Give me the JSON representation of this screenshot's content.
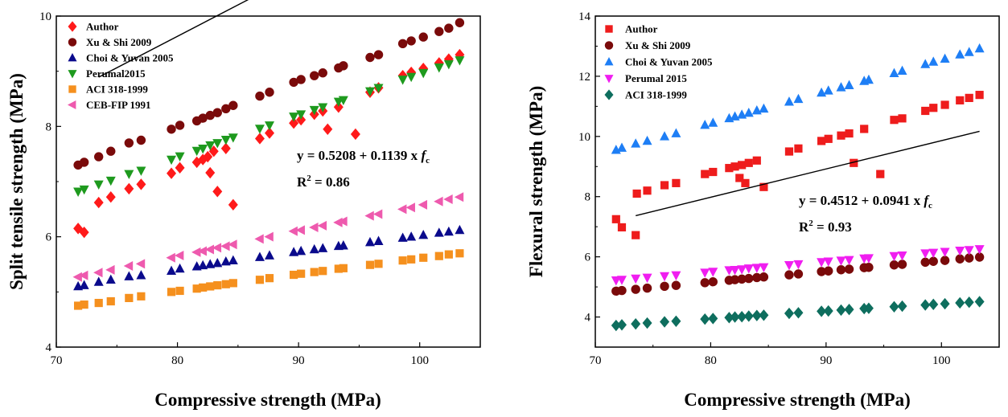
{
  "chart_data": [
    {
      "type": "scatter",
      "xlabel": "Compressive strength (MPa)",
      "ylabel": "Split tensile strength (MPa)",
      "xlim": [
        70,
        105
      ],
      "ylim": [
        4,
        10
      ],
      "xticks": [
        70,
        80,
        90,
        100
      ],
      "yticks": [
        4,
        6,
        8,
        10
      ],
      "legend": "top-left",
      "series": [
        {
          "name": "Author",
          "marker": "diamond",
          "color": "#ff1a1a",
          "x": [
            71.8,
            72.3,
            73.5,
            74.5,
            76.0,
            77.0,
            79.5,
            80.2,
            81.6,
            82.1,
            82.5,
            82.7,
            83.0,
            83.3,
            84.0,
            84.6,
            86.8,
            87.6,
            89.6,
            90.2,
            91.3,
            92.0,
            92.4,
            93.3,
            94.7,
            95.9,
            96.6,
            98.6,
            99.3,
            100.3,
            101.6,
            102.4,
            103.3
          ],
          "y": [
            6.15,
            6.08,
            6.62,
            6.72,
            6.87,
            6.95,
            7.15,
            7.25,
            7.35,
            7.4,
            7.45,
            7.16,
            7.55,
            6.82,
            7.6,
            6.58,
            7.78,
            7.88,
            8.06,
            8.12,
            8.22,
            8.28,
            7.95,
            8.35,
            7.86,
            8.62,
            8.7,
            8.92,
            8.98,
            9.05,
            9.15,
            9.22,
            9.3
          ]
        },
        {
          "name": "Xu & Shi 2009",
          "marker": "circle",
          "color": "#7a0a0a",
          "x": [
            71.8,
            72.3,
            73.5,
            74.5,
            76.0,
            77.0,
            79.5,
            80.2,
            81.6,
            82.1,
            82.7,
            83.3,
            84.0,
            84.6,
            86.8,
            87.6,
            89.6,
            90.2,
            91.3,
            92.0,
            93.3,
            93.7,
            95.9,
            96.6,
            98.6,
            99.3,
            100.3,
            101.6,
            102.4,
            103.3
          ],
          "y": [
            7.3,
            7.35,
            7.45,
            7.55,
            7.7,
            7.75,
            7.95,
            8.02,
            8.1,
            8.15,
            8.2,
            8.25,
            8.32,
            8.38,
            8.55,
            8.62,
            8.8,
            8.85,
            8.92,
            8.97,
            9.06,
            9.1,
            9.25,
            9.3,
            9.5,
            9.55,
            9.62,
            9.72,
            9.78,
            9.88
          ]
        },
        {
          "name": "Choi & Yuvan 2005",
          "marker": "triangle-up",
          "color": "#0a0a8c",
          "x": [
            71.8,
            72.3,
            73.5,
            74.5,
            76.0,
            77.0,
            79.5,
            80.2,
            81.6,
            82.1,
            82.7,
            83.3,
            84.0,
            84.6,
            86.8,
            87.6,
            89.6,
            90.2,
            91.3,
            92.0,
            93.3,
            93.7,
            95.9,
            96.6,
            98.6,
            99.3,
            100.3,
            101.6,
            102.4,
            103.3
          ],
          "y": [
            5.1,
            5.12,
            5.18,
            5.22,
            5.28,
            5.3,
            5.38,
            5.42,
            5.46,
            5.48,
            5.5,
            5.52,
            5.55,
            5.57,
            5.63,
            5.66,
            5.72,
            5.74,
            5.77,
            5.79,
            5.83,
            5.84,
            5.9,
            5.92,
            5.98,
            6.0,
            6.03,
            6.07,
            6.09,
            6.12
          ]
        },
        {
          "name": "Perumal2015",
          "marker": "triangle-down",
          "color": "#1e9a1e",
          "x": [
            71.8,
            72.3,
            73.5,
            74.5,
            76.0,
            77.0,
            79.5,
            80.2,
            81.6,
            82.1,
            82.7,
            83.3,
            84.0,
            84.6,
            86.8,
            87.6,
            89.6,
            90.2,
            91.3,
            92.0,
            93.3,
            93.7,
            95.9,
            96.6,
            98.6,
            99.3,
            100.3,
            101.6,
            102.4,
            103.3
          ],
          "y": [
            6.82,
            6.86,
            6.95,
            7.02,
            7.14,
            7.2,
            7.4,
            7.46,
            7.56,
            7.6,
            7.66,
            7.7,
            7.76,
            7.8,
            7.96,
            8.02,
            8.18,
            8.22,
            8.3,
            8.35,
            8.45,
            8.48,
            8.64,
            8.7,
            8.85,
            8.9,
            8.97,
            9.07,
            9.13,
            9.2
          ]
        },
        {
          "name": "ACI 318-1999",
          "marker": "square",
          "color": "#f5901e",
          "x": [
            71.8,
            72.3,
            73.5,
            74.5,
            76.0,
            77.0,
            79.5,
            80.2,
            81.6,
            82.1,
            82.7,
            83.3,
            84.0,
            84.6,
            86.8,
            87.6,
            89.6,
            90.2,
            91.3,
            92.0,
            93.3,
            93.7,
            95.9,
            96.6,
            98.6,
            99.3,
            100.3,
            101.6,
            102.4,
            103.3
          ],
          "y": [
            4.75,
            4.77,
            4.8,
            4.83,
            4.89,
            4.92,
            5.0,
            5.02,
            5.06,
            5.08,
            5.1,
            5.12,
            5.14,
            5.16,
            5.22,
            5.25,
            5.31,
            5.33,
            5.36,
            5.38,
            5.42,
            5.43,
            5.49,
            5.51,
            5.57,
            5.59,
            5.62,
            5.65,
            5.68,
            5.7
          ]
        },
        {
          "name": "CEB-FIP 1991",
          "marker": "triangle-left",
          "color": "#ee5aae",
          "x": [
            71.8,
            72.3,
            73.5,
            74.5,
            76.0,
            77.0,
            79.5,
            80.2,
            81.6,
            82.1,
            82.7,
            83.3,
            84.0,
            84.6,
            86.8,
            87.6,
            89.6,
            90.2,
            91.3,
            92.0,
            93.3,
            93.7,
            95.9,
            96.6,
            98.6,
            99.3,
            100.3,
            101.6,
            102.4,
            103.3
          ],
          "y": [
            5.27,
            5.3,
            5.35,
            5.4,
            5.47,
            5.51,
            5.62,
            5.66,
            5.72,
            5.74,
            5.77,
            5.8,
            5.83,
            5.86,
            5.96,
            6.0,
            6.1,
            6.12,
            6.17,
            6.2,
            6.26,
            6.28,
            6.38,
            6.41,
            6.5,
            6.53,
            6.58,
            6.64,
            6.68,
            6.72
          ]
        }
      ],
      "fit_line": {
        "intercept": 0.5208,
        "slope": 0.1139,
        "x_range": [
          73.5,
          103.3
        ]
      },
      "annotations": {
        "equation": "y = 0.5208 + 0.1139 x ",
        "equation_var": "f",
        "equation_sub": "c",
        "r2_prefix": "R",
        "r2_exp": "2",
        "r2_value": " = 0.86"
      }
    },
    {
      "type": "scatter",
      "xlabel": "Compressive strength (MPa)",
      "ylabel": "Flexural strength (MPa)",
      "xlim": [
        70,
        105
      ],
      "ylim": [
        3,
        14
      ],
      "xticks": [
        70,
        80,
        90,
        100
      ],
      "yticks": [
        4,
        6,
        8,
        10,
        12,
        14
      ],
      "legend": "top-left",
      "series": [
        {
          "name": "Author",
          "marker": "square",
          "color": "#ee1c1c",
          "x": [
            71.8,
            72.3,
            73.5,
            73.6,
            74.5,
            76.0,
            77.0,
            79.5,
            80.2,
            81.6,
            82.1,
            82.5,
            82.7,
            83.0,
            83.3,
            84.0,
            84.6,
            86.8,
            87.6,
            89.6,
            90.2,
            91.3,
            92.0,
            92.4,
            93.3,
            94.7,
            95.9,
            96.6,
            98.6,
            99.3,
            100.3,
            101.6,
            102.4,
            103.3
          ],
          "y": [
            7.25,
            6.98,
            6.72,
            8.1,
            8.2,
            8.38,
            8.45,
            8.75,
            8.82,
            8.95,
            9.0,
            8.62,
            9.05,
            8.45,
            9.12,
            9.2,
            8.32,
            9.5,
            9.6,
            9.85,
            9.92,
            10.03,
            10.1,
            9.12,
            10.25,
            8.75,
            10.55,
            10.6,
            10.85,
            10.95,
            11.05,
            11.2,
            11.28,
            11.38
          ]
        },
        {
          "name": "Xu & Shi 2009",
          "marker": "circle",
          "color": "#7a0a0a",
          "x": [
            71.8,
            72.3,
            73.5,
            74.5,
            76.0,
            77.0,
            79.5,
            80.2,
            81.6,
            82.1,
            82.7,
            83.3,
            84.0,
            84.6,
            86.8,
            87.6,
            89.6,
            90.2,
            91.3,
            92.0,
            93.3,
            93.7,
            95.9,
            96.6,
            98.6,
            99.3,
            100.3,
            101.6,
            102.4,
            103.3
          ],
          "y": [
            4.86,
            4.88,
            4.92,
            4.96,
            5.02,
            5.05,
            5.14,
            5.17,
            5.22,
            5.24,
            5.26,
            5.28,
            5.31,
            5.33,
            5.4,
            5.43,
            5.51,
            5.53,
            5.57,
            5.59,
            5.64,
            5.65,
            5.73,
            5.75,
            5.82,
            5.85,
            5.88,
            5.93,
            5.96,
            5.99
          ]
        },
        {
          "name": "Choi & Yuvan 2005",
          "marker": "triangle-up",
          "color": "#1e7ef5",
          "x": [
            71.8,
            72.3,
            73.5,
            74.5,
            76.0,
            77.0,
            79.5,
            80.2,
            81.6,
            82.1,
            82.7,
            83.3,
            84.0,
            84.6,
            86.8,
            87.6,
            89.6,
            90.2,
            91.3,
            92.0,
            93.3,
            93.7,
            95.9,
            96.6,
            98.6,
            99.3,
            100.3,
            101.6,
            102.4,
            103.3
          ],
          "y": [
            9.55,
            9.62,
            9.76,
            9.85,
            10.0,
            10.1,
            10.38,
            10.45,
            10.6,
            10.66,
            10.72,
            10.78,
            10.86,
            10.92,
            11.15,
            11.24,
            11.45,
            11.52,
            11.63,
            11.7,
            11.84,
            11.88,
            12.1,
            12.18,
            12.4,
            12.48,
            12.58,
            12.72,
            12.8,
            12.92
          ]
        },
        {
          "name": "Perumal 2015",
          "marker": "triangle-down",
          "color": "#f01ef0",
          "x": [
            71.8,
            72.3,
            73.5,
            74.5,
            76.0,
            77.0,
            79.5,
            80.2,
            81.6,
            82.1,
            82.7,
            83.3,
            84.0,
            84.6,
            86.8,
            87.6,
            89.6,
            90.2,
            91.3,
            92.0,
            93.3,
            93.7,
            95.9,
            96.6,
            98.6,
            99.3,
            100.3,
            101.6,
            102.4,
            103.3
          ],
          "y": [
            5.22,
            5.24,
            5.28,
            5.31,
            5.36,
            5.39,
            5.48,
            5.51,
            5.56,
            5.57,
            5.59,
            5.62,
            5.64,
            5.66,
            5.73,
            5.76,
            5.83,
            5.85,
            5.88,
            5.9,
            5.95,
            5.96,
            6.03,
            6.05,
            6.12,
            6.14,
            6.17,
            6.21,
            6.23,
            6.26
          ]
        },
        {
          "name": "ACI 318-1999",
          "marker": "diamond",
          "color": "#0e6e5e",
          "x": [
            71.8,
            72.3,
            73.5,
            74.5,
            76.0,
            77.0,
            79.5,
            80.2,
            81.6,
            82.1,
            82.7,
            83.3,
            84.0,
            84.6,
            86.8,
            87.6,
            89.6,
            90.2,
            91.3,
            92.0,
            93.3,
            93.7,
            95.9,
            96.6,
            98.6,
            99.3,
            100.3,
            101.6,
            102.4,
            103.3
          ],
          "y": [
            3.72,
            3.74,
            3.77,
            3.8,
            3.84,
            3.86,
            3.93,
            3.95,
            3.98,
            4.0,
            4.01,
            4.03,
            4.05,
            4.06,
            4.12,
            4.14,
            4.19,
            4.2,
            4.23,
            4.25,
            4.28,
            4.29,
            4.34,
            4.36,
            4.4,
            4.42,
            4.44,
            4.47,
            4.49,
            4.51
          ]
        }
      ],
      "fit_line": {
        "intercept": 0.4512,
        "slope": 0.0941,
        "x_range": [
          73.5,
          103.3
        ]
      },
      "annotations": {
        "equation": "y = 0.4512 + 0.0941 x ",
        "equation_var": "f",
        "equation_sub": "c",
        "r2_prefix": "R",
        "r2_exp": "2",
        "r2_value": " = 0.93"
      }
    }
  ]
}
